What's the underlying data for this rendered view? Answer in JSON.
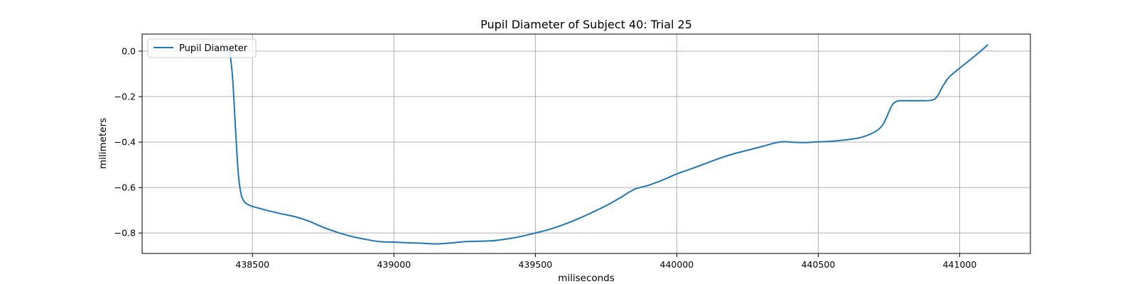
{
  "chart_data": {
    "type": "line",
    "title": "Pupil Diameter of Subject 40: Trial 25",
    "xlabel": "miliseconds",
    "ylabel": "milimeters",
    "xlim": [
      438110,
      441250
    ],
    "ylim": [
      -0.89,
      0.075
    ],
    "xticks": [
      438500,
      439000,
      439500,
      440000,
      440500,
      441000
    ],
    "yticks": [
      0.0,
      -0.2,
      -0.4,
      -0.6,
      -0.8
    ],
    "xtick_labels": [
      "438500",
      "439000",
      "439500",
      "440000",
      "440500",
      "441000"
    ],
    "ytick_labels": [
      "0.0",
      "−0.2",
      "−0.4",
      "−0.6",
      "−0.8"
    ],
    "grid": true,
    "legend": {
      "position": "upper-left",
      "entries": [
        "Pupil Diameter"
      ]
    },
    "colors": {
      "line": "#1f77b4",
      "grid": "#b0b0b0",
      "axes": "#000000"
    },
    "series": [
      {
        "name": "Pupil Diameter",
        "x": [
          438420,
          438430,
          438440,
          438450,
          438460,
          438470,
          438480,
          438490,
          438500,
          438550,
          438600,
          438650,
          438700,
          438750,
          438800,
          438850,
          438900,
          438950,
          439000,
          439050,
          439100,
          439150,
          439200,
          439250,
          439300,
          439350,
          439400,
          439450,
          439500,
          439550,
          439600,
          439650,
          439700,
          439750,
          439800,
          439850,
          439900,
          439950,
          440000,
          440050,
          440100,
          440150,
          440200,
          440250,
          440300,
          440350,
          440380,
          440400,
          440450,
          440500,
          440550,
          440600,
          440650,
          440700,
          440730,
          440760,
          440780,
          440800,
          440850,
          440900,
          440920,
          440940,
          440960,
          440980,
          441000,
          441050,
          441100
        ],
        "y": [
          0.0,
          -0.12,
          -0.34,
          -0.54,
          -0.63,
          -0.66,
          -0.672,
          -0.678,
          -0.683,
          -0.7,
          -0.715,
          -0.728,
          -0.748,
          -0.775,
          -0.797,
          -0.815,
          -0.828,
          -0.838,
          -0.84,
          -0.843,
          -0.845,
          -0.848,
          -0.844,
          -0.838,
          -0.836,
          -0.834,
          -0.826,
          -0.815,
          -0.8,
          -0.784,
          -0.763,
          -0.738,
          -0.71,
          -0.68,
          -0.645,
          -0.608,
          -0.59,
          -0.567,
          -0.54,
          -0.518,
          -0.495,
          -0.472,
          -0.452,
          -0.436,
          -0.42,
          -0.403,
          -0.398,
          -0.4,
          -0.402,
          -0.399,
          -0.396,
          -0.39,
          -0.38,
          -0.355,
          -0.32,
          -0.24,
          -0.22,
          -0.218,
          -0.218,
          -0.216,
          -0.2,
          -0.155,
          -0.118,
          -0.095,
          -0.075,
          -0.025,
          0.028
        ]
      }
    ]
  }
}
